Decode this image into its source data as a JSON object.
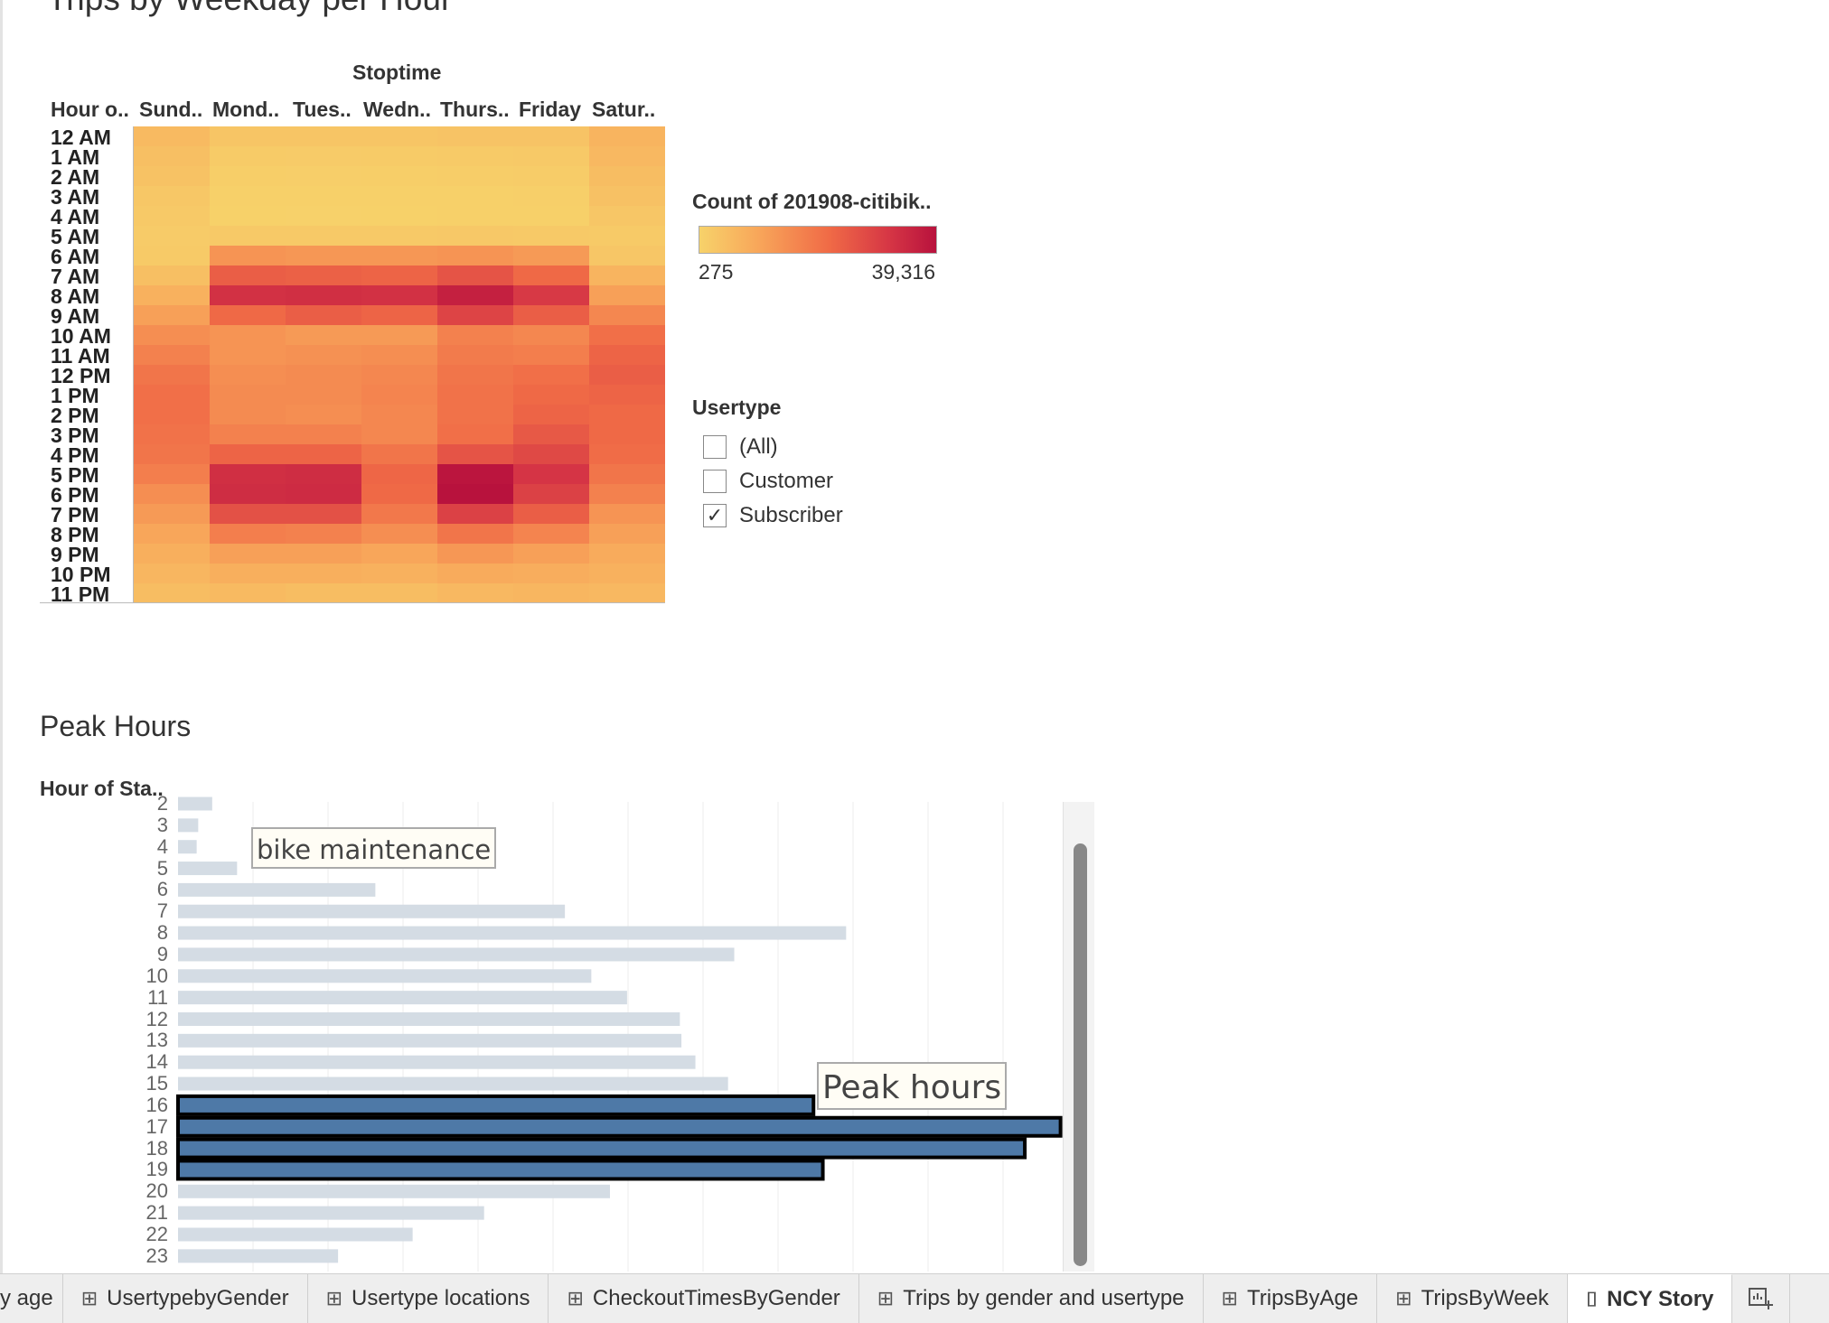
{
  "heatmap": {
    "title": "Trips by Weekday per Hour",
    "column_group_label": "Stoptime",
    "row_header": "Hour o..",
    "columns": [
      "Sund..",
      "Mond..",
      "Tues..",
      "Wedn..",
      "Thurs..",
      "Friday",
      "Satur.."
    ],
    "rows": [
      "12 AM",
      "1 AM",
      "2 AM",
      "3 AM",
      "4 AM",
      "5 AM",
      "6 AM",
      "7 AM",
      "8 AM",
      "9 AM",
      "10 AM",
      "11 AM",
      "12 PM",
      "1 PM",
      "2 PM",
      "3 PM",
      "4 PM",
      "5 PM",
      "6 PM",
      "7 PM",
      "8 PM",
      "9 PM",
      "10 PM",
      "11 PM"
    ]
  },
  "chart_data": [
    {
      "type": "heatmap",
      "title": "Trips by Weekday per Hour",
      "xlabel": "Stoptime",
      "ylabel": "Hour o..",
      "x": [
        "Sund..",
        "Mond..",
        "Tues..",
        "Wedn..",
        "Thurs..",
        "Friday",
        "Satur.."
      ],
      "y": [
        "12 AM",
        "1 AM",
        "2 AM",
        "3 AM",
        "4 AM",
        "5 AM",
        "6 AM",
        "7 AM",
        "8 AM",
        "9 AM",
        "10 AM",
        "11 AM",
        "12 PM",
        "1 PM",
        "2 PM",
        "3 PM",
        "4 PM",
        "5 PM",
        "6 PM",
        "7 PM",
        "8 PM",
        "9 PM",
        "10 PM",
        "11 PM"
      ],
      "values": [
        [
          5500,
          3200,
          3100,
          3200,
          3500,
          3600,
          7000
        ],
        [
          4500,
          1900,
          1800,
          1900,
          2100,
          2300,
          6000
        ],
        [
          3800,
          1200,
          1100,
          1200,
          1300,
          1500,
          5000
        ],
        [
          2800,
          700,
          650,
          700,
          750,
          900,
          4000
        ],
        [
          2200,
          600,
          550,
          600,
          650,
          800,
          3000
        ],
        [
          1800,
          2300,
          2200,
          2300,
          2400,
          2300,
          2000
        ],
        [
          2000,
          13000,
          12500,
          12500,
          13000,
          12000,
          3000
        ],
        [
          4500,
          22000,
          21500,
          21000,
          24000,
          20000,
          7000
        ],
        [
          7500,
          31000,
          31500,
          31000,
          35500,
          29000,
          11000
        ],
        [
          11000,
          20000,
          22000,
          21000,
          27000,
          22000,
          15000
        ],
        [
          14000,
          13000,
          12000,
          12000,
          16000,
          15000,
          19000
        ],
        [
          16000,
          13000,
          13500,
          14000,
          17000,
          16500,
          21000
        ],
        [
          18000,
          14000,
          14500,
          15000,
          18000,
          19000,
          22000
        ],
        [
          19000,
          14500,
          14500,
          15500,
          18500,
          20000,
          21000
        ],
        [
          19000,
          14500,
          14000,
          15000,
          18500,
          21000,
          20000
        ],
        [
          18500,
          16000,
          16000,
          15000,
          19000,
          23000,
          20000
        ],
        [
          18000,
          21000,
          21000,
          18000,
          24000,
          26000,
          19500
        ],
        [
          16500,
          31500,
          32000,
          20500,
          38500,
          30000,
          18000
        ],
        [
          14000,
          32000,
          32500,
          20000,
          39300,
          27500,
          16000
        ],
        [
          12000,
          24500,
          24500,
          17500,
          27500,
          22000,
          13000
        ],
        [
          10000,
          16500,
          16000,
          14000,
          18000,
          15500,
          11000
        ],
        [
          8000,
          11000,
          11000,
          10000,
          12500,
          11000,
          9000
        ],
        [
          6500,
          8000,
          8000,
          7500,
          9000,
          8500,
          7500
        ],
        [
          5000,
          5500,
          5000,
          5000,
          6000,
          6500,
          6000
        ]
      ],
      "color_range": [
        275,
        39316
      ]
    },
    {
      "type": "bar",
      "title": "Peak Hours",
      "ylabel": "Hour of Sta..",
      "categories": [
        "2",
        "3",
        "4",
        "5",
        "6",
        "7",
        "8",
        "9",
        "10",
        "11",
        "12",
        "13",
        "14",
        "15",
        "16",
        "17",
        "18",
        "19",
        "20",
        "21",
        "22",
        "23"
      ],
      "values": [
        22000,
        13000,
        12000,
        38000,
        127000,
        249000,
        430000,
        358000,
        266000,
        289000,
        323000,
        324000,
        333000,
        354000,
        409000,
        568000,
        545000,
        415000,
        278000,
        197000,
        151000,
        103000
      ],
      "highlighted": [
        "16",
        "17",
        "18",
        "19"
      ],
      "colors": {
        "normal": "#d4dce4",
        "highlight": "#4e79a7"
      }
    }
  ],
  "legend": {
    "title": "Count of 201908-citibik..",
    "min_label": "275",
    "max_label": "39,316",
    "gradient_colors": [
      "#f7d26a",
      "#f8a65a",
      "#f06a46",
      "#d63645",
      "#b8123d"
    ]
  },
  "filter": {
    "title": "Usertype",
    "options": [
      {
        "label": "(All)",
        "checked": false
      },
      {
        "label": "Customer",
        "checked": false
      },
      {
        "label": "Subscriber",
        "checked": true
      }
    ]
  },
  "peak": {
    "title": "Peak Hours",
    "axis_title": "Hour of Sta..",
    "annotation_maintenance": "bike maintenance",
    "annotation_peak": "Peak hours"
  },
  "tabs": [
    {
      "label": "y age",
      "icon": "",
      "active": false
    },
    {
      "label": "UsertypebyGender",
      "icon": "⊞",
      "active": false
    },
    {
      "label": "Usertype locations",
      "icon": "⊞",
      "active": false
    },
    {
      "label": "CheckoutTimesByGender",
      "icon": "⊞",
      "active": false
    },
    {
      "label": "Trips by gender and usertype",
      "icon": "⊞",
      "active": false
    },
    {
      "label": "TripsByAge",
      "icon": "⊞",
      "active": false
    },
    {
      "label": "TripsByWeek",
      "icon": "⊞",
      "active": false
    },
    {
      "label": "NCY Story",
      "icon": "📖",
      "active": true
    }
  ],
  "icons": {
    "grid": "grid-icon",
    "story": "book-icon",
    "new_sheet": "new-sheet-icon"
  }
}
